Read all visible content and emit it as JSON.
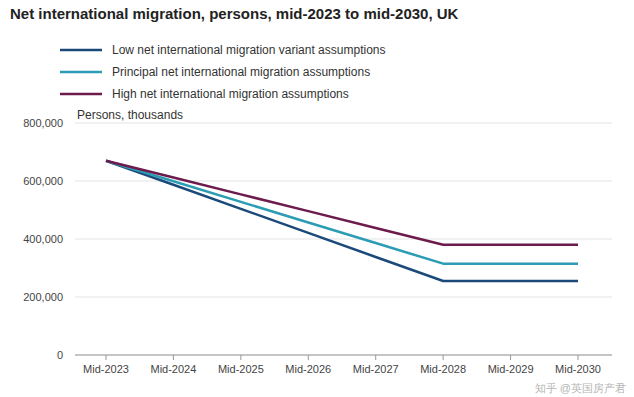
{
  "chart_data": {
    "type": "line",
    "title": "Net international migration, persons, mid-2023 to mid-2030, UK",
    "y_label": "Persons, thousands",
    "categories": [
      "Mid-2023",
      "Mid-2024",
      "Mid-2025",
      "Mid-2026",
      "Mid-2027",
      "Mid-2028",
      "Mid-2029",
      "Mid-2030"
    ],
    "series": [
      {
        "name": "Low net international migration variant assumptions",
        "color": "#1b4a7a",
        "values": [
          670000,
          587000,
          504000,
          421000,
          338000,
          255000,
          255000,
          255000
        ]
      },
      {
        "name": "Principal net international migration assumptions",
        "color": "#2b9cb4",
        "values": [
          670000,
          599000,
          528000,
          457000,
          386000,
          315000,
          315000,
          315000
        ]
      },
      {
        "name": "High net international migration assumptions",
        "color": "#6d1a4c",
        "values": [
          670000,
          612000,
          554000,
          496000,
          438000,
          380000,
          380000,
          380000
        ]
      }
    ],
    "ylim": [
      0,
      800000
    ],
    "yticks": [
      0,
      {
        "value": 200000,
        "label": "200,000"
      },
      {
        "value": 400000,
        "label": "400,000"
      },
      {
        "value": 600000,
        "label": "600,000"
      },
      {
        "value": 800000,
        "label": "800,000"
      }
    ],
    "grid": true,
    "legend": "top-left",
    "annotations": [
      "知乎 @英国房产君"
    ]
  }
}
